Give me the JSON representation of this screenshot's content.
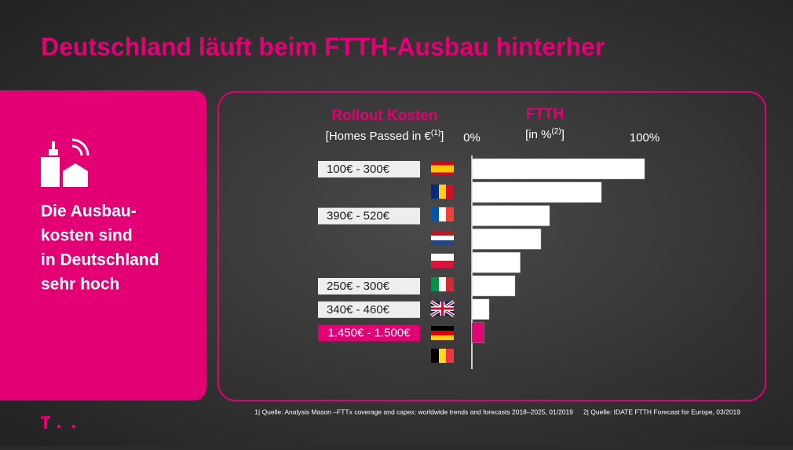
{
  "title": "Deutschland läuft beim FTTH-Ausbau hinterher",
  "sidebar": {
    "lines": [
      "Die Ausbau-",
      "kosten sind",
      "in Deutschland",
      "sehr hoch"
    ]
  },
  "chart_data": {
    "type": "bar",
    "orientation": "horizontal",
    "cost_header": "Rollout Kosten",
    "cost_subheader": {
      "text": "[Homes Passed in €",
      "ref": "(1)",
      "close": "]"
    },
    "value_header": "FTTH",
    "value_subheader": {
      "text": "[in %",
      "ref": "(2)",
      "close": "]"
    },
    "categories": [
      null,
      null,
      null,
      null,
      null,
      null,
      null,
      null,
      null
    ],
    "cost_labels": [
      "100€ - 300€",
      null,
      "390€ - 520€",
      null,
      null,
      "250€ - 300€",
      "340€ - 460€",
      "1.450€ - 1.500€",
      null
    ],
    "values": [
      100,
      75,
      45,
      40,
      28,
      25,
      10,
      7,
      0
    ],
    "colors": [
      "#ffffff",
      "#ffffff",
      "#ffffff",
      "#ffffff",
      "#ffffff",
      "#ffffff",
      "#ffffff",
      "#e20074",
      "#ffffff"
    ],
    "highlight_index": 7,
    "xlim": [
      0,
      100
    ],
    "xticks": [
      {
        "value": 0,
        "label": "0%"
      },
      {
        "value": 100,
        "label": "100%"
      }
    ]
  },
  "footnotes": [
    "1| Quelle: Analysis Mason –FTTx coverage and capex: worldwide trends and forecasts 2018–2025, 01/2019",
    "2| Quelle: IDATE FTTH Forecast for Europe, 03/2019"
  ]
}
